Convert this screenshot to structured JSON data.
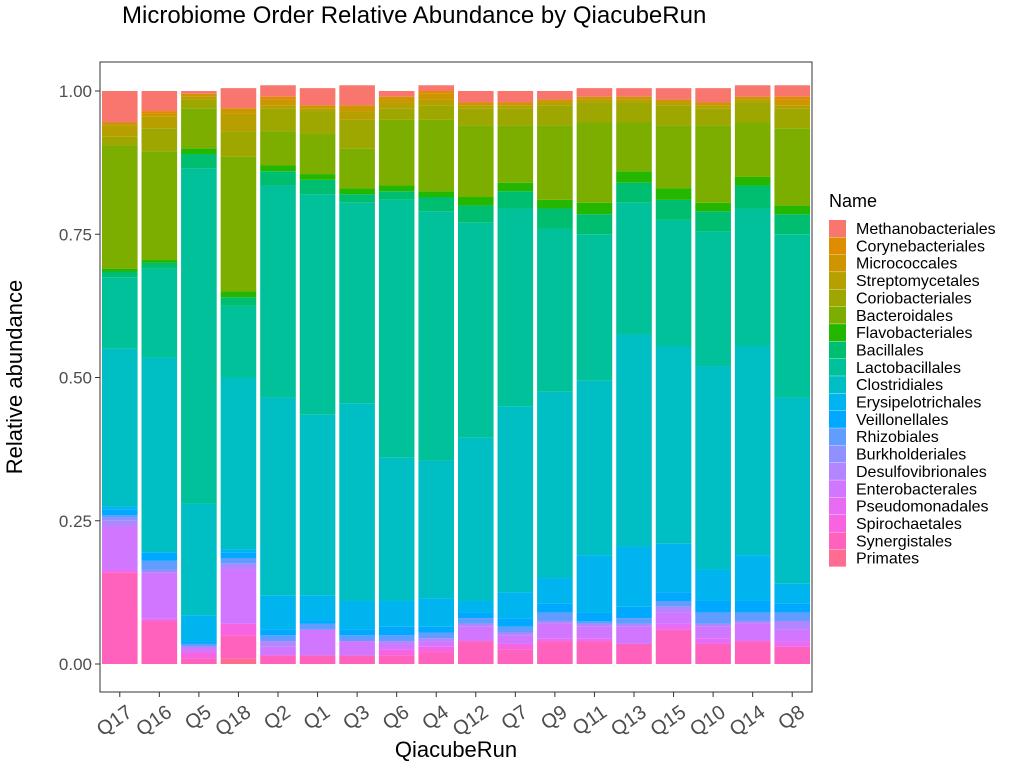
{
  "chart_data": {
    "type": "bar",
    "stacked": true,
    "title": "Microbiome Order Relative Abundance by QiacubeRun",
    "xlabel": "QiacubeRun",
    "ylabel": "Relative abundance",
    "ylim": [
      0,
      1
    ],
    "yticks": [
      "0.00",
      "0.25",
      "0.50",
      "0.75",
      "1.00"
    ],
    "grid": false,
    "legend_title": "Name",
    "legend_position": "right",
    "categories": [
      "Q17",
      "Q16",
      "Q5",
      "Q18",
      "Q2",
      "Q1",
      "Q3",
      "Q6",
      "Q4",
      "Q12",
      "Q7",
      "Q9",
      "Q11",
      "Q13",
      "Q15",
      "Q10",
      "Q14",
      "Q8"
    ],
    "series": [
      {
        "name": "Primates",
        "color": "#FF6C91",
        "values": [
          0,
          0,
          0,
          0.01,
          0,
          0,
          0,
          0,
          0,
          0,
          0,
          0,
          0,
          0,
          0,
          0,
          0,
          0
        ]
      },
      {
        "name": "Synergistales",
        "color": "#FF62BC",
        "values": [
          0.16,
          0.075,
          0.01,
          0.04,
          0.015,
          0.015,
          0.015,
          0.015,
          0.02,
          0.04,
          0.025,
          0.04,
          0.04,
          0.035,
          0.06,
          0.035,
          0.04,
          0.03
        ]
      },
      {
        "name": "Spirochaetales",
        "color": "#F763E0",
        "values": [
          0,
          0,
          0.01,
          0.02,
          0,
          0,
          0,
          0.01,
          0.01,
          0,
          0.01,
          0,
          0,
          0,
          0,
          0,
          0,
          0
        ]
      },
      {
        "name": "Pseudomonadales",
        "color": "#E76BF3",
        "values": [
          0.005,
          0.005,
          0,
          0,
          0,
          0,
          0,
          0,
          0,
          0,
          0,
          0.005,
          0.005,
          0,
          0.01,
          0.01,
          0,
          0.01
        ]
      },
      {
        "name": "Enterobacterales",
        "color": "#D177FF",
        "values": [
          0.075,
          0.08,
          0.01,
          0.095,
          0.015,
          0.045,
          0.025,
          0.01,
          0.01,
          0.025,
          0.015,
          0.025,
          0.02,
          0.03,
          0.02,
          0.02,
          0.03,
          0.02
        ]
      },
      {
        "name": "Desulfovibrionales",
        "color": "#B385FF",
        "values": [
          0.01,
          0,
          0,
          0.01,
          0.01,
          0,
          0,
          0.005,
          0.005,
          0.005,
          0.005,
          0.005,
          0.005,
          0.005,
          0.01,
          0.005,
          0.005,
          0.015
        ]
      },
      {
        "name": "Burkholderiales",
        "color": "#8F91FF",
        "values": [
          0.005,
          0.005,
          0,
          0,
          0,
          0,
          0,
          0,
          0,
          0,
          0,
          0,
          0,
          0,
          0,
          0,
          0,
          0
        ]
      },
      {
        "name": "Rhizobiales",
        "color": "#619CFF",
        "values": [
          0.005,
          0.015,
          0.005,
          0.01,
          0.01,
          0.01,
          0.01,
          0.01,
          0.01,
          0.01,
          0.01,
          0.015,
          0.005,
          0.01,
          0.01,
          0.02,
          0.015,
          0.015
        ]
      },
      {
        "name": "Veillonellales",
        "color": "#00A9FF",
        "values": [
          0.01,
          0.015,
          0.005,
          0.01,
          0.01,
          0.005,
          0.01,
          0.015,
          0.01,
          0.01,
          0.015,
          0.015,
          0.015,
          0.02,
          0.015,
          0.02,
          0.02,
          0.015
        ]
      },
      {
        "name": "Erysipelotrichales",
        "color": "#00B4EF",
        "values": [
          0.005,
          0,
          0.045,
          0.005,
          0.06,
          0.045,
          0.05,
          0.045,
          0.05,
          0.02,
          0.045,
          0.045,
          0.1,
          0.105,
          0.085,
          0.055,
          0.08,
          0.035
        ]
      },
      {
        "name": "Clostridiales",
        "color": "#00BFC4",
        "values": [
          0.275,
          0.34,
          0.195,
          0.3,
          0.345,
          0.315,
          0.345,
          0.25,
          0.24,
          0.285,
          0.325,
          0.325,
          0.305,
          0.37,
          0.345,
          0.355,
          0.365,
          0.325
        ]
      },
      {
        "name": "Lactobacillales",
        "color": "#00C19A",
        "values": [
          0.125,
          0.155,
          0.585,
          0.125,
          0.37,
          0.385,
          0.35,
          0.45,
          0.435,
          0.375,
          0.345,
          0.285,
          0.255,
          0.23,
          0.22,
          0.235,
          0.24,
          0.285
        ]
      },
      {
        "name": "Bacillales",
        "color": "#00BE70",
        "values": [
          0.01,
          0.01,
          0.025,
          0.015,
          0.025,
          0.025,
          0.015,
          0.015,
          0.025,
          0.03,
          0.03,
          0.035,
          0.035,
          0.035,
          0.035,
          0.035,
          0.04,
          0.035
        ]
      },
      {
        "name": "Flavobacteriales",
        "color": "#24B700",
        "values": [
          0.005,
          0.005,
          0.01,
          0.01,
          0.01,
          0.01,
          0.01,
          0.01,
          0.01,
          0.015,
          0.015,
          0.015,
          0.02,
          0.02,
          0.02,
          0.015,
          0.015,
          0.015
        ]
      },
      {
        "name": "Bacteroidales",
        "color": "#7CAE00",
        "values": [
          0.215,
          0.19,
          0.07,
          0.235,
          0.06,
          0.07,
          0.07,
          0.115,
          0.125,
          0.125,
          0.1,
          0.13,
          0.14,
          0.085,
          0.11,
          0.135,
          0.095,
          0.135
        ]
      },
      {
        "name": "Coriobacteriales",
        "color": "#9DA700",
        "values": [
          0.015,
          0.04,
          0.015,
          0.045,
          0.04,
          0.04,
          0.05,
          0.02,
          0.025,
          0.03,
          0.03,
          0.035,
          0.035,
          0.035,
          0.035,
          0.03,
          0.035,
          0.035
        ]
      },
      {
        "name": "Streptomycetales",
        "color": "#B79F00",
        "values": [
          0.02,
          0.02,
          0.005,
          0.03,
          0.005,
          0.005,
          0.015,
          0.01,
          0.01,
          0.005,
          0.005,
          0.005,
          0.005,
          0.005,
          0.005,
          0.005,
          0.005,
          0.005
        ]
      },
      {
        "name": "Micrococcales",
        "color": "#CD9600",
        "values": [
          0.005,
          0.005,
          0.005,
          0.01,
          0.01,
          0.005,
          0.01,
          0.01,
          0.01,
          0.005,
          0.005,
          0.005,
          0.005,
          0.005,
          0.005,
          0.005,
          0.005,
          0.01
        ]
      },
      {
        "name": "Corynebacteriales",
        "color": "#DE8C00",
        "values": [
          0,
          0.005,
          0,
          0,
          0.005,
          0,
          0,
          0,
          0.005,
          0,
          0,
          0,
          0,
          0,
          0,
          0,
          0,
          0.005
        ]
      },
      {
        "name": "Methanobacteriales",
        "color": "#F8766D",
        "values": [
          0.055,
          0.035,
          0.005,
          0.035,
          0.02,
          0.03,
          0.035,
          0.01,
          0.01,
          0.02,
          0.02,
          0.015,
          0.015,
          0.015,
          0.02,
          0.025,
          0.02,
          0.02
        ]
      }
    ],
    "legend_order": [
      "Methanobacteriales",
      "Corynebacteriales",
      "Micrococcales",
      "Streptomycetales",
      "Coriobacteriales",
      "Bacteroidales",
      "Flavobacteriales",
      "Bacillales",
      "Lactobacillales",
      "Clostridiales",
      "Erysipelotrichales",
      "Veillonellales",
      "Rhizobiales",
      "Burkholderiales",
      "Desulfovibrionales",
      "Enterobacterales",
      "Pseudomonadales",
      "Spirochaetales",
      "Synergistales",
      "Primates"
    ]
  }
}
